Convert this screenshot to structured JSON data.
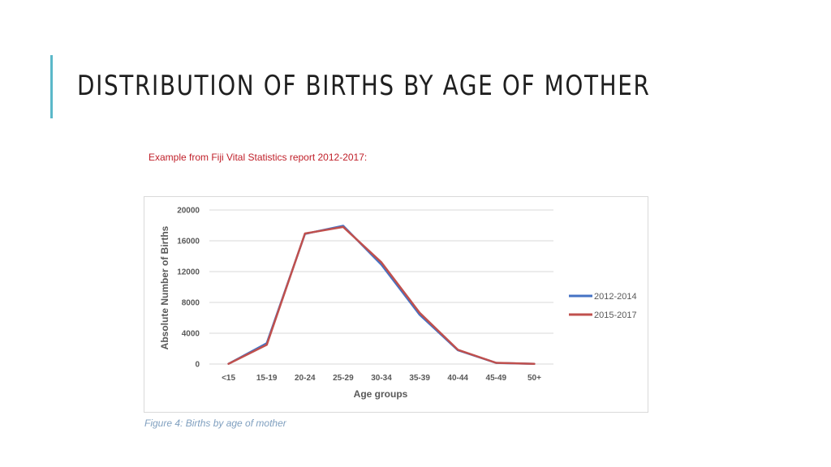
{
  "slide": {
    "title": "DISTRIBUTION OF BIRTHS BY AGE OF MOTHER",
    "caption": "Example from Fiji Vital Statistics report 2012-2017:",
    "figure_caption": "Figure 4: Births by age of mother",
    "accent_color": "#5bb8c9",
    "caption_color": "#c0202a"
  },
  "chart_data": {
    "type": "line",
    "title": "",
    "xlabel": "Age groups",
    "ylabel": "Absolute Number of Births",
    "categories": [
      "<15",
      "15-19",
      "20-24",
      "25-29",
      "30-34",
      "35-39",
      "40-44",
      "45-49",
      "50+"
    ],
    "ylim": [
      0,
      20000
    ],
    "yticks": [
      0,
      4000,
      8000,
      12000,
      16000,
      20000
    ],
    "grid": true,
    "legend_position": "right",
    "series": [
      {
        "name": "2012-2014",
        "color": "#4472c4",
        "values": [
          30,
          2700,
          16900,
          17950,
          12900,
          6400,
          1800,
          150,
          20
        ]
      },
      {
        "name": "2015-2017",
        "color": "#c0504d",
        "values": [
          30,
          2500,
          16950,
          17800,
          13200,
          6650,
          1850,
          160,
          20
        ]
      }
    ]
  }
}
